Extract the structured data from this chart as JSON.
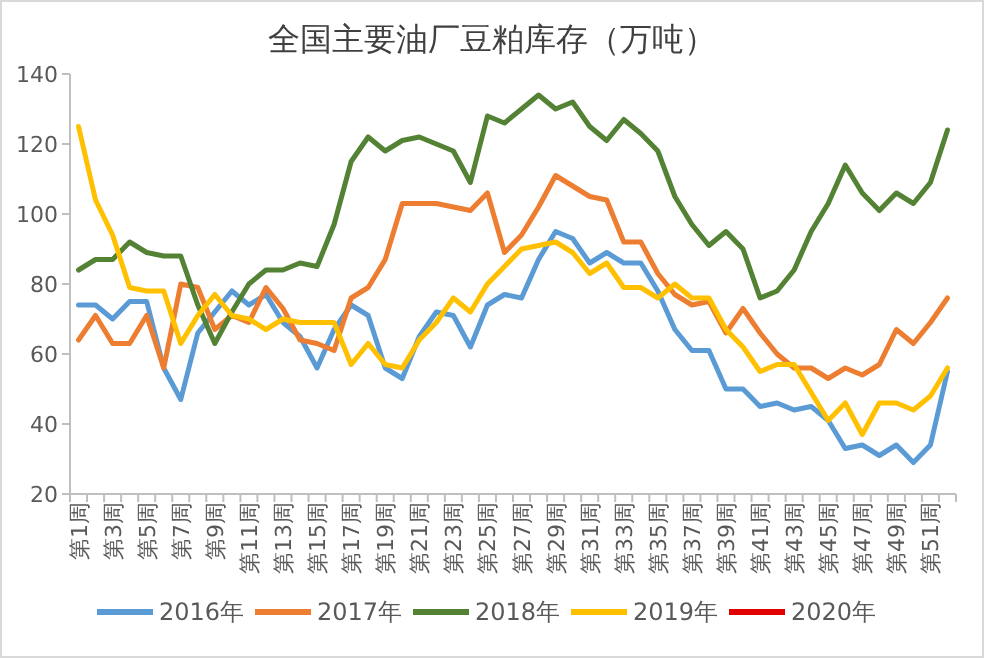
{
  "chart_data": {
    "type": "line",
    "title": "全国主要油厂豆粕库存（万吨）",
    "categories": [
      "第1周",
      null,
      "第3周",
      null,
      "第5周",
      null,
      "第7周",
      null,
      "第9周",
      null,
      "第11周",
      null,
      "第13周",
      null,
      "第15周",
      null,
      "第17周",
      null,
      "第19周",
      null,
      "第21周",
      null,
      "第23周",
      null,
      "第25周",
      null,
      "第27周",
      null,
      "第29周",
      null,
      "第31周",
      null,
      "第33周",
      null,
      "第35周",
      null,
      "第37周",
      null,
      "第39周",
      null,
      "第41周",
      null,
      "第43周",
      null,
      "第45周",
      null,
      "第47周",
      null,
      "第49周",
      null,
      "第51周",
      null
    ],
    "ylim": [
      20,
      140
    ],
    "yticks": [
      20,
      40,
      60,
      80,
      100,
      120,
      140
    ],
    "grid": false,
    "legend": "bottom",
    "marker": "none",
    "line_style": "solid",
    "series": [
      {
        "name": "2016年",
        "color": "#5b9bd5",
        "values": [
          74,
          74,
          70,
          75,
          75,
          56,
          47,
          66,
          72,
          78,
          74,
          77,
          69,
          65,
          56,
          67,
          74,
          71,
          56,
          53,
          65,
          72,
          71,
          62,
          74,
          77,
          76,
          87,
          95,
          93,
          86,
          89,
          86,
          86,
          78,
          67,
          61,
          61,
          50,
          50,
          45,
          46,
          44,
          45,
          41,
          33,
          34,
          31,
          34,
          29,
          34,
          55
        ]
      },
      {
        "name": "2017年",
        "color": "#ed7d31",
        "values": [
          64,
          71,
          63,
          63,
          71,
          56,
          80,
          79,
          67,
          71,
          69,
          79,
          73,
          64,
          63,
          61,
          76,
          79,
          87,
          103,
          103,
          103,
          102,
          101,
          106,
          89,
          94,
          102,
          111,
          108,
          105,
          104,
          92,
          92,
          83,
          77,
          74,
          75,
          66,
          73,
          66,
          60,
          56,
          56,
          53,
          56,
          54,
          57,
          67,
          63,
          69,
          76
        ]
      },
      {
        "name": "2018年",
        "color": "#548235",
        "values": [
          84,
          87,
          87,
          92,
          89,
          88,
          88,
          74,
          63,
          72,
          80,
          84,
          84,
          86,
          85,
          97,
          115,
          122,
          118,
          121,
          122,
          120,
          118,
          109,
          128,
          126,
          130,
          134,
          130,
          132,
          125,
          121,
          127,
          123,
          118,
          105,
          97,
          91,
          95,
          90,
          76,
          78,
          84,
          95,
          103,
          114,
          106,
          101,
          106,
          103,
          109,
          124
        ]
      },
      {
        "name": "2019年",
        "color": "#ffc000",
        "values": [
          125,
          104,
          94,
          79,
          78,
          78,
          63,
          71,
          77,
          71,
          70,
          67,
          70,
          69,
          69,
          69,
          57,
          63,
          57,
          56,
          64,
          69,
          76,
          72,
          80,
          85,
          90,
          91,
          92,
          89,
          83,
          86,
          79,
          79,
          76,
          80,
          76,
          76,
          67,
          62,
          55,
          57,
          57,
          49,
          41,
          46,
          37,
          46,
          46,
          44,
          48,
          56
        ]
      },
      {
        "name": "2020年",
        "color": "#e00000",
        "values": [
          null,
          null,
          null,
          null,
          null,
          null,
          null,
          null,
          null,
          null,
          null,
          null,
          null,
          null,
          null,
          null,
          null,
          null,
          null,
          null,
          null,
          null,
          null,
          null,
          null,
          null,
          null,
          null,
          null,
          null,
          null,
          null,
          null,
          null,
          null,
          null,
          null,
          null,
          null,
          null,
          null,
          null,
          null,
          null,
          null,
          null,
          null,
          null,
          null,
          null,
          null,
          null
        ]
      }
    ]
  }
}
